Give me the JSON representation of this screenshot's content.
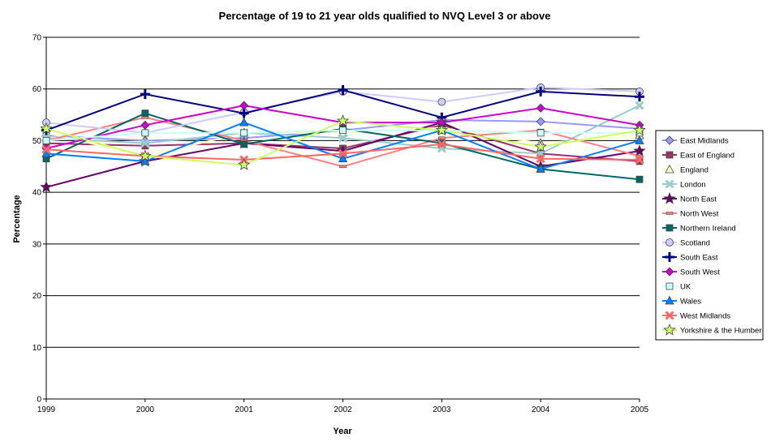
{
  "chart_data": {
    "type": "line",
    "title": "Percentage of 19 to 21 year olds qualified to NVQ Level 3 or above",
    "xlabel": "Year",
    "ylabel": "Percentage",
    "categories": [
      "1999",
      "2000",
      "2001",
      "2002",
      "2003",
      "2004",
      "2005"
    ],
    "ylim": [
      0,
      70
    ],
    "yticks": [
      0,
      10,
      20,
      30,
      40,
      50,
      60,
      70
    ],
    "grid": "horizontal",
    "legend_position": "right",
    "series": [
      {
        "name": "East Midlands",
        "color": "#9999ff",
        "marker": "diamond",
        "values": [
          51,
          50,
          50.5,
          52,
          54,
          53.7,
          52.3
        ]
      },
      {
        "name": "East of England",
        "color": "#993366",
        "marker": "square",
        "values": [
          49.5,
          49,
          49.5,
          48.5,
          53,
          47.5,
          46
        ]
      },
      {
        "name": "England",
        "color": "#ffffcc",
        "marker": "triangle",
        "values": [
          51.5,
          47,
          51.5,
          51.5,
          52.5,
          49.5,
          51
        ]
      },
      {
        "name": "London",
        "color": "#99cccc",
        "marker": "x",
        "values": [
          50.5,
          49.5,
          51.5,
          50.5,
          48.5,
          47.5,
          56.8
        ]
      },
      {
        "name": "North East",
        "color": "#660066",
        "marker": "star",
        "values": [
          41,
          46,
          49.5,
          48,
          53.5,
          45,
          48
        ]
      },
      {
        "name": "North West",
        "color": "#ff8080",
        "marker": "dash",
        "values": [
          50,
          54.5,
          50,
          45,
          50.5,
          52,
          47
        ]
      },
      {
        "name": "Northern Ireland",
        "color": "#006666",
        "marker": "square",
        "values": [
          46.5,
          55.3,
          49.3,
          52.3,
          49.5,
          44.5,
          42.5
        ]
      },
      {
        "name": "Scotland",
        "color": "#ccccff",
        "marker": "circle",
        "values": [
          53.5,
          51.5,
          55.5,
          59.5,
          57.5,
          60.3,
          59.5
        ]
      },
      {
        "name": "South East",
        "color": "#000080",
        "marker": "plus",
        "values": [
          52,
          59,
          55.3,
          59.8,
          54.5,
          59.5,
          58.5
        ]
      },
      {
        "name": "South West",
        "color": "#cc00cc",
        "marker": "diamond",
        "values": [
          48.5,
          53,
          56.8,
          53.5,
          53.5,
          56.3,
          53
        ]
      },
      {
        "name": "UK",
        "color": "#ccffff",
        "marker": "square",
        "values": [
          50,
          51.5,
          51.5,
          52,
          52,
          51.5,
          51.5
        ]
      },
      {
        "name": "Wales",
        "color": "#0080ff",
        "marker": "triangle",
        "values": [
          47.5,
          46,
          53.5,
          46.5,
          52,
          44.5,
          50
        ]
      },
      {
        "name": "West Midlands",
        "color": "#ff6666",
        "marker": "x",
        "values": [
          48.3,
          47,
          46.3,
          47.5,
          49.3,
          46.5,
          46.3
        ]
      },
      {
        "name": "Yorkshire & the Humber",
        "color": "#ccff66",
        "marker": "star",
        "values": [
          52.3,
          47,
          45.3,
          53.8,
          52,
          48.8,
          52
        ]
      }
    ]
  }
}
